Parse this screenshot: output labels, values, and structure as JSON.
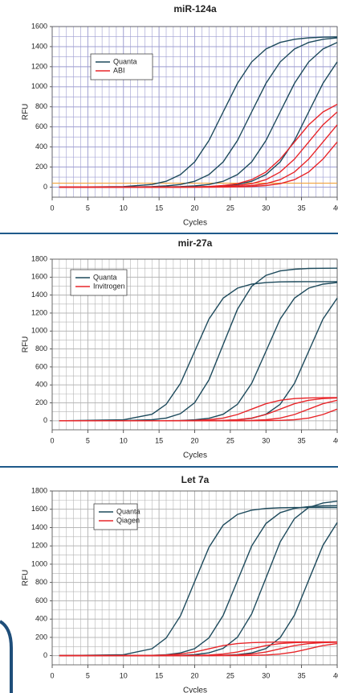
{
  "chart_data": [
    {
      "type": "line",
      "title": "miR-124a",
      "xlabel": "Cycles",
      "ylabel": "RFU",
      "x": [
        1,
        10,
        14,
        16,
        18,
        20,
        22,
        24,
        26,
        28,
        30,
        32,
        34,
        36,
        38,
        40
      ],
      "xlim": [
        0,
        40
      ],
      "xticks": [
        0,
        5,
        10,
        15,
        20,
        25,
        30,
        35,
        40
      ],
      "ylim": [
        -100,
        1600
      ],
      "yticks": [
        0,
        200,
        400,
        600,
        800,
        1000,
        1200,
        1400,
        1600
      ],
      "grid": true,
      "grid_color": "#9c9cd0",
      "minor_grid": {
        "x": 1,
        "y": 100
      },
      "legend": "upper left",
      "threshold": {
        "value": 40,
        "color": "#f2a23c"
      },
      "series": [
        {
          "name": "Quanta",
          "color": "#1d4a5c",
          "curves": [
            [
              0,
              6,
              27,
              59,
              125,
              252,
              465,
              750,
              1035,
              1248,
              1376,
              1442,
              1473,
              1488,
              1494,
              1497
            ],
            [
              0,
              1,
              6,
              12,
              27,
              59,
              125,
              252,
              465,
              750,
              1035,
              1248,
              1376,
              1442,
              1473,
              1488
            ],
            [
              0,
              0,
              1,
              3,
              6,
              12,
              27,
              59,
              125,
              252,
              465,
              750,
              1035,
              1248,
              1376,
              1442
            ],
            [
              0,
              0,
              0,
              0,
              1,
              3,
              6,
              12,
              27,
              59,
              125,
              252,
              465,
              750,
              1035,
              1248
            ]
          ]
        },
        {
          "name": "ABI",
          "color": "#e8262a",
          "curves": [
            [
              0,
              0,
              0,
              0,
              1,
              3,
              7,
              16,
              35,
              75,
              151,
              279,
              450,
              621,
              749,
              825
            ],
            [
              0,
              0,
              0,
              0,
              0,
              1,
              3,
              7,
              16,
              35,
              75,
              151,
              279,
              450,
              621,
              749
            ],
            [
              0,
              0,
              0,
              0,
              0,
              0,
              1,
              3,
              7,
              16,
              35,
              75,
              151,
              279,
              450,
              621
            ],
            [
              0,
              0,
              0,
              0,
              0,
              0,
              0,
              1,
              3,
              7,
              16,
              35,
              75,
              151,
              279,
              450
            ]
          ]
        }
      ]
    },
    {
      "type": "line",
      "title": "mir-27a",
      "xlabel": "Cycles",
      "ylabel": "RFU",
      "x": [
        1,
        10,
        14,
        16,
        18,
        20,
        22,
        24,
        26,
        28,
        30,
        32,
        34,
        36,
        38,
        40
      ],
      "xlim": [
        0,
        40
      ],
      "xticks": [
        0,
        5,
        10,
        15,
        20,
        25,
        30,
        35,
        40
      ],
      "ylim": [
        -100,
        1800
      ],
      "yticks": [
        0,
        200,
        400,
        600,
        800,
        1000,
        1200,
        1400,
        1600,
        1800
      ],
      "grid": true,
      "grid_color": "#b4b4b4",
      "minor_grid": {
        "x": 1,
        "y": 100
      },
      "legend": "upper left",
      "series": [
        {
          "name": "Quanta",
          "color": "#1d4a5c",
          "curves": [
            [
              0,
              11,
              73,
              184,
              417,
              775,
              1133,
              1366,
              1477,
              1522,
              1539,
              1547,
              1549,
              1550,
              1550,
              1550
            ],
            [
              0,
              2,
              12,
              31,
              80,
              202,
              457,
              850,
              1243,
              1498,
              1620,
              1669,
              1688,
              1697,
              1699,
              1700
            ],
            [
              0,
              0,
              1,
              1,
              4,
              11,
              28,
              73,
              184,
              417,
              775,
              1133,
              1366,
              1477,
              1522,
              1539
            ],
            [
              0,
              0,
              0,
              0,
              0,
              1,
              1,
              4,
              11,
              28,
              73,
              184,
              417,
              775,
              1133,
              1366
            ]
          ]
        },
        {
          "name": "Invitrogen",
          "color": "#e8262a",
          "curves": [
            [
              0,
              0,
              0,
              1,
              2,
              5,
              12,
              31,
              70,
              130,
              190,
              229,
              248,
              255,
              258,
              259
            ],
            [
              0,
              0,
              0,
              0,
              0,
              1,
              2,
              5,
              12,
              31,
              70,
              130,
              190,
              229,
              248,
              255
            ],
            [
              0,
              0,
              0,
              0,
              0,
              0,
              0,
              1,
              2,
              5,
              12,
              31,
              70,
              130,
              190,
              229
            ],
            [
              0,
              0,
              0,
              0,
              0,
              0,
              0,
              0,
              0,
              1,
              2,
              5,
              12,
              31,
              70,
              130
            ]
          ]
        }
      ]
    },
    {
      "type": "line",
      "title": "Let 7a",
      "xlabel": "Cycles",
      "ylabel": "RFU",
      "x": [
        1,
        10,
        14,
        16,
        18,
        20,
        22,
        24,
        26,
        28,
        30,
        32,
        34,
        36,
        38,
        40
      ],
      "xlim": [
        0,
        40
      ],
      "xticks": [
        0,
        5,
        10,
        15,
        20,
        25,
        30,
        35,
        40
      ],
      "ylim": [
        -100,
        1800
      ],
      "yticks": [
        0,
        200,
        400,
        600,
        800,
        1000,
        1200,
        1400,
        1600,
        1800
      ],
      "grid": true,
      "grid_color": "#b4b4b4",
      "minor_grid": {
        "x": 1,
        "y": 100
      },
      "legend": "upper left",
      "series": [
        {
          "name": "Quanta",
          "color": "#1d4a5c",
          "curves": [
            [
              0,
              11,
              76,
              193,
              436,
              810,
              1184,
              1427,
              1544,
              1591,
              1609,
              1617,
              1619,
              1620,
              1620,
              1620
            ],
            [
              0,
              0,
              4,
              11,
              30,
              77,
              195,
              441,
              820,
              1199,
              1445,
              1563,
              1610,
              1629,
              1637,
              1639
            ],
            [
              0,
              0,
              0,
              2,
              4,
              12,
              31,
              80,
              202,
              457,
              850,
              1243,
              1498,
              1620,
              1669,
              1688
            ],
            [
              0,
              0,
              0,
              0,
              0,
              1,
              2,
              4,
              12,
              30,
              78,
              196,
              444,
              825,
              1206,
              1454
            ]
          ]
        },
        {
          "name": "Qiagen",
          "color": "#e8262a",
          "curves": [
            [
              0,
              0,
              3,
              7,
              18,
              40,
              75,
              110,
              132,
              143,
              147,
              149,
              150,
              150,
              150,
              150
            ],
            [
              0,
              0,
              0,
              0,
              1,
              3,
              7,
              18,
              40,
              75,
              110,
              132,
              143,
              147,
              149,
              150
            ],
            [
              0,
              0,
              0,
              0,
              0,
              0,
              1,
              3,
              7,
              18,
              40,
              75,
              110,
              132,
              143,
              147
            ],
            [
              0,
              0,
              0,
              0,
              0,
              0,
              0,
              0,
              1,
              3,
              7,
              18,
              40,
              75,
              110,
              132
            ]
          ]
        }
      ]
    }
  ]
}
